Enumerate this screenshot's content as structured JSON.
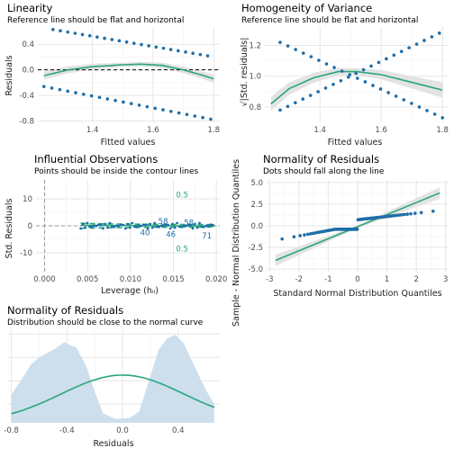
{
  "chart_data": [
    {
      "type": "scatter",
      "title": "Linearity",
      "subtitle": "Reference line should be flat and horizontal",
      "xlabel": "Fitted values",
      "ylabel": "Residuals",
      "xlim": [
        1.22,
        1.82
      ],
      "ylim": [
        -0.82,
        0.67
      ],
      "xticks": [
        1.4,
        1.6,
        1.8
      ],
      "yticks": [
        -0.8,
        -0.4,
        0.0,
        0.4
      ],
      "ytick_labels": [
        "-0.8",
        "-0.4",
        "0.0",
        "0.4"
      ],
      "reference_line": 0,
      "upper_points": {
        "x_start": 1.27,
        "x_end": 1.78,
        "y_start": 0.63,
        "y_end": 0.22
      },
      "lower_points": {
        "x_start": 1.24,
        "x_end": 1.79,
        "y_start": -0.26,
        "y_end": -0.77
      },
      "smooth": [
        [
          1.24,
          -0.09
        ],
        [
          1.32,
          0.0
        ],
        [
          1.4,
          0.05
        ],
        [
          1.5,
          0.08
        ],
        [
          1.56,
          0.09
        ],
        [
          1.63,
          0.07
        ],
        [
          1.7,
          0.0
        ],
        [
          1.76,
          -0.08
        ],
        [
          1.8,
          -0.14
        ]
      ],
      "colors": {
        "points": "#1f6ea8",
        "smooth": "#2aa67a",
        "band": "#e3e3e3"
      }
    },
    {
      "type": "scatter",
      "title": "Homogeneity of Variance",
      "subtitle": "Reference line should be flat and horizontal",
      "xlabel": "Fitted values",
      "ylabel": "√|Std. residuals|",
      "xlim": [
        1.22,
        1.82
      ],
      "ylim": [
        0.7,
        1.32
      ],
      "xticks": [
        1.4,
        1.6,
        1.8
      ],
      "yticks": [
        0.8,
        1.0,
        1.2
      ],
      "ytick_labels": [
        "0.8",
        "1.0",
        "1.2"
      ],
      "descending_points": {
        "x_start": 1.27,
        "x_end": 1.8,
        "y_start": 1.22,
        "y_end": 0.73
      },
      "ascending_points": {
        "x_start": 1.27,
        "x_end": 1.79,
        "y_start": 0.78,
        "y_end": 1.28
      },
      "smooth": [
        [
          1.24,
          0.82
        ],
        [
          1.3,
          0.92
        ],
        [
          1.38,
          0.99
        ],
        [
          1.46,
          1.03
        ],
        [
          1.52,
          1.03
        ],
        [
          1.6,
          1.01
        ],
        [
          1.68,
          0.97
        ],
        [
          1.76,
          0.93
        ],
        [
          1.8,
          0.91
        ]
      ],
      "colors": {
        "points": "#1f6ea8",
        "smooth": "#2aa67a",
        "band": "#e3e3e3"
      }
    },
    {
      "type": "scatter",
      "title": "Influential Observations",
      "subtitle": "Points should be inside the contour lines",
      "xlabel": "Leverage (hᵢᵢ)",
      "ylabel": "Std. Residuals",
      "xlim": [
        -0.001,
        0.0204
      ],
      "ylim": [
        -17,
        17
      ],
      "xticks": [
        0.0,
        0.005,
        0.01,
        0.015,
        0.02
      ],
      "xtick_labels": [
        "0.000",
        "0.005",
        "0.010",
        "0.015",
        "0.020"
      ],
      "yticks": [
        -10,
        0,
        10
      ],
      "ytick_labels": [
        "-10",
        "0",
        "10"
      ],
      "contour_label": "0.5",
      "contour_labels_at": [
        [
          0.0153,
          10.5
        ],
        [
          0.0153,
          -9.5
        ]
      ],
      "point_labels": [
        {
          "text": "40",
          "x": 0.0117,
          "y": -3.5
        },
        {
          "text": "46",
          "x": 0.0147,
          "y": -4.2
        },
        {
          "text": "58",
          "x": 0.0138,
          "y": 0.6
        },
        {
          "text": "58",
          "x": 0.0168,
          "y": 0.2
        },
        {
          "text": "71",
          "x": 0.0189,
          "y": -4.6
        }
      ],
      "colors": {
        "points": "#1f6ea8",
        "contour": "#2aa67a",
        "labels": "#1f6ea8",
        "contour_text": "#2aa67a"
      }
    },
    {
      "type": "scatter",
      "title": "Normality of Residuals",
      "subtitle": "Dots should fall along the line",
      "xlabel": "Standard Normal Distribution Quantiles",
      "ylabel": "Sample - Normal Distribution Quantiles",
      "xlim": [
        -3.1,
        3.1
      ],
      "ylim": [
        -5.3,
        5.3
      ],
      "xticks": [
        -3,
        -2,
        -1,
        0,
        1,
        2,
        3
      ],
      "yticks": [
        -5.0,
        -2.5,
        0.0,
        2.5,
        5.0
      ],
      "ytick_labels": [
        "-5.0",
        "-2.5",
        "0.0",
        "2.5",
        "5.0"
      ],
      "reference_line": [
        [
          -2.8,
          -4.0
        ],
        [
          2.8,
          3.8
        ]
      ],
      "colors": {
        "points": "#1f6ea8",
        "line": "#2aa67a",
        "band": "#e3e3e3"
      }
    },
    {
      "type": "area",
      "title": "Normality of Residuals",
      "subtitle": "Distribution should be close to the normal curve",
      "xlabel": "Residuals",
      "ylabel": "",
      "xlim": [
        -0.83,
        0.7
      ],
      "ylim": [
        0,
        1.0
      ],
      "xticks": [
        -0.8,
        -0.4,
        0.0,
        0.4
      ],
      "xtick_labels": [
        "-0.8",
        "-0.4",
        "0.0",
        "0.4"
      ],
      "density": [
        [
          -0.8,
          0.3
        ],
        [
          -0.72,
          0.48
        ],
        [
          -0.66,
          0.62
        ],
        [
          -0.6,
          0.7
        ],
        [
          -0.5,
          0.78
        ],
        [
          -0.42,
          0.86
        ],
        [
          -0.33,
          0.8
        ],
        [
          -0.26,
          0.6
        ],
        [
          -0.2,
          0.33
        ],
        [
          -0.14,
          0.1
        ],
        [
          -0.05,
          0.04
        ],
        [
          0.05,
          0.05
        ],
        [
          0.12,
          0.12
        ],
        [
          0.2,
          0.5
        ],
        [
          0.26,
          0.78
        ],
        [
          0.32,
          0.9
        ],
        [
          0.38,
          0.94
        ],
        [
          0.44,
          0.85
        ],
        [
          0.52,
          0.6
        ],
        [
          0.6,
          0.35
        ],
        [
          0.66,
          0.2
        ]
      ],
      "normal_curve": {
        "mean": 0.0,
        "sd": 0.44,
        "peak": 0.51
      },
      "colors": {
        "area": "#cddeed",
        "curve": "#2aa67a"
      }
    }
  ]
}
